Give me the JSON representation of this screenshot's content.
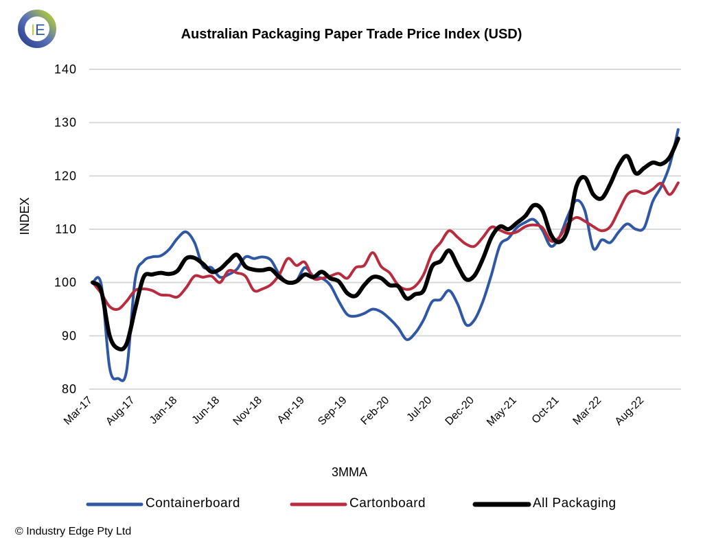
{
  "logo": {
    "text": "IE"
  },
  "copyright": "© Industry Edge Pty Ltd",
  "chart_data": {
    "type": "line",
    "title": "Australian Packaging Paper Trade Price Index (USD)",
    "xlabel": "3MMA",
    "ylabel": "INDEX",
    "ylim": [
      80,
      140
    ],
    "yticks": [
      80,
      90,
      100,
      110,
      120,
      130,
      140
    ],
    "grid": true,
    "legend_position": "bottom",
    "x_start": "Mar-17",
    "x_frequency": "monthly",
    "tick_every_months": 5,
    "xtick_labels": [
      "Mar-17",
      "Aug-17",
      "Jan-18",
      "Jun-18",
      "Nov-18",
      "Apr-19",
      "Sep-19",
      "Feb-20",
      "Jul-20",
      "Dec-20",
      "May-21",
      "Oct-21",
      "Mar-22",
      "Aug-22"
    ],
    "series": [
      {
        "name": "Containerboard",
        "color": "#2f57a4",
        "values": [
          100,
          99.7,
          84,
          82,
          83.5,
          100.5,
          104,
          104.8,
          105,
          106.2,
          108.3,
          109.5,
          107.5,
          103,
          102.8,
          101,
          101.5,
          102.5,
          104.8,
          104.5,
          104.8,
          104.2,
          101.5,
          100,
          100.3,
          102.8,
          101.2,
          100.8,
          99.5,
          96.5,
          94,
          93.7,
          94.2,
          95,
          94.5,
          93.2,
          91.5,
          89.3,
          90.5,
          93,
          96.4,
          96.8,
          98.5,
          96,
          92.1,
          93,
          96.5,
          101.5,
          107,
          108.3,
          110.3,
          111.3,
          111.8,
          109.8,
          106.8,
          108.5,
          112.5,
          115.4,
          113.5,
          106.4,
          108,
          107.5,
          109.5,
          111,
          110,
          110.3,
          115.2,
          118,
          122,
          128.7
        ]
      },
      {
        "name": "Cartonboard",
        "color": "#b72c3f",
        "values": [
          100,
          98,
          95.5,
          95,
          96.5,
          98.5,
          98.8,
          98.5,
          97.7,
          97.6,
          97.3,
          99,
          101.2,
          101,
          101.2,
          100,
          102.2,
          101.8,
          101.2,
          98.5,
          98.8,
          99.6,
          101.5,
          104.5,
          103.2,
          103.8,
          100.8,
          100.8,
          101.2,
          101.7,
          100.8,
          102.8,
          103.2,
          105.6,
          103,
          101.8,
          99.5,
          98.7,
          99.3,
          101.5,
          105.5,
          107.5,
          109.7,
          108.5,
          107.2,
          106.8,
          108.5,
          110.4,
          109.8,
          109.2,
          109.5,
          110.5,
          110.8,
          110.3,
          107.8,
          108.5,
          111,
          112.2,
          111.5,
          110.5,
          109.7,
          110.5,
          113.5,
          116.5,
          117.2,
          116.7,
          117.5,
          118.6,
          116.5,
          118.7
        ]
      },
      {
        "name": "All Packaging",
        "color": "#000000",
        "values": [
          100,
          98.5,
          90,
          87.6,
          88.5,
          95,
          101,
          101.5,
          101.8,
          101.6,
          102.2,
          104.5,
          104.6,
          103.5,
          102,
          102.5,
          104,
          105.2,
          103,
          102.4,
          102.3,
          102.5,
          101,
          100,
          100.2,
          101.5,
          101,
          102,
          100.8,
          100.2,
          98,
          97.5,
          99.5,
          101,
          100.8,
          99.5,
          99.3,
          97,
          97.8,
          98.5,
          103,
          104,
          106,
          103.2,
          100.6,
          101.3,
          104.5,
          108.5,
          110.5,
          110,
          111.2,
          112.5,
          114.5,
          113.5,
          109,
          107.6,
          110,
          118,
          119.7,
          116.5,
          115.8,
          118.5,
          122,
          123.7,
          120.5,
          121.5,
          122.5,
          122.2,
          123.5,
          127
        ]
      }
    ]
  }
}
